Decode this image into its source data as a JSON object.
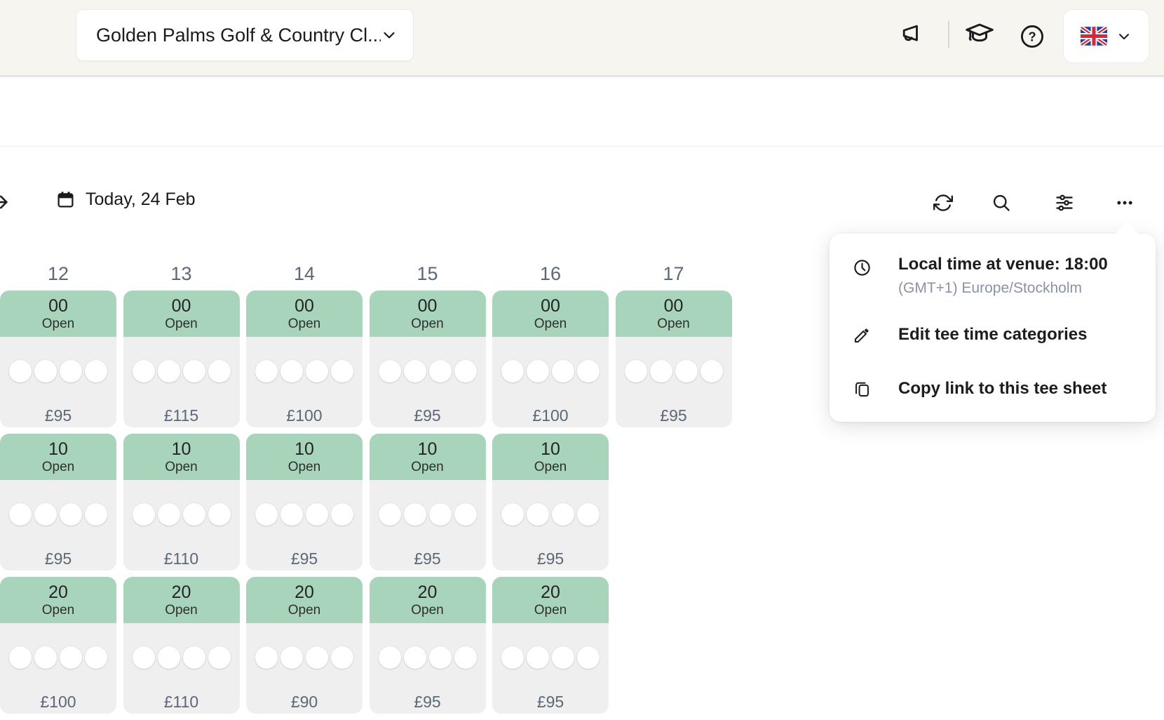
{
  "colors": {
    "topbar_bg": "#f6f5f0",
    "slot_green": "#a9d4bc",
    "slot_gray": "#efefef",
    "muted_text": "#5d6876",
    "subtitle_text": "#8a92a6"
  },
  "header": {
    "venue_selector": {
      "label": "Golden Palms Golf & Country Cl...",
      "icon": "chevron-down-icon"
    },
    "action_icons": [
      "megaphone-icon",
      "graduation-cap-icon",
      "help-icon"
    ],
    "language_selector": {
      "flag": "united-kingdom-flag",
      "icon": "chevron-down-icon"
    }
  },
  "toolbar": {
    "date_label": "Today, 24 Feb",
    "icons": [
      "collapse-arrow-icon",
      "calendar-icon",
      "refresh-icon",
      "search-icon",
      "filters-icon",
      "more-options-icon"
    ]
  },
  "context_menu": {
    "local_time": {
      "title": "Local time at venue: 18:00",
      "subtitle": "(GMT+1) Europe/Stockholm"
    },
    "items": [
      {
        "label": "Edit tee time categories",
        "icon": "pencil-icon"
      },
      {
        "label": "Copy link to this tee sheet",
        "icon": "copy-icon"
      }
    ]
  },
  "tee_sheet": {
    "columns": [
      {
        "hour": "12",
        "slots": [
          {
            "minute": "00",
            "status": "Open",
            "price": "£95",
            "spots": 4
          },
          {
            "minute": "10",
            "status": "Open",
            "price": "£95",
            "spots": 4
          },
          {
            "minute": "20",
            "status": "Open",
            "price": "£100",
            "spots": 4
          }
        ]
      },
      {
        "hour": "13",
        "slots": [
          {
            "minute": "00",
            "status": "Open",
            "price": "£115",
            "spots": 4
          },
          {
            "minute": "10",
            "status": "Open",
            "price": "£110",
            "spots": 4
          },
          {
            "minute": "20",
            "status": "Open",
            "price": "£110",
            "spots": 4
          }
        ]
      },
      {
        "hour": "14",
        "slots": [
          {
            "minute": "00",
            "status": "Open",
            "price": "£100",
            "spots": 4
          },
          {
            "minute": "10",
            "status": "Open",
            "price": "£95",
            "spots": 4
          },
          {
            "minute": "20",
            "status": "Open",
            "price": "£90",
            "spots": 4
          }
        ]
      },
      {
        "hour": "15",
        "slots": [
          {
            "minute": "00",
            "status": "Open",
            "price": "£95",
            "spots": 4
          },
          {
            "minute": "10",
            "status": "Open",
            "price": "£95",
            "spots": 4
          },
          {
            "minute": "20",
            "status": "Open",
            "price": "£95",
            "spots": 4
          }
        ]
      },
      {
        "hour": "16",
        "slots": [
          {
            "minute": "00",
            "status": "Open",
            "price": "£100",
            "spots": 4
          },
          {
            "minute": "10",
            "status": "Open",
            "price": "£95",
            "spots": 4
          },
          {
            "minute": "20",
            "status": "Open",
            "price": "£95",
            "spots": 4
          }
        ]
      },
      {
        "hour": "17",
        "slots": [
          {
            "minute": "00",
            "status": "Open",
            "price": "£95",
            "spots": 4
          }
        ]
      }
    ]
  }
}
